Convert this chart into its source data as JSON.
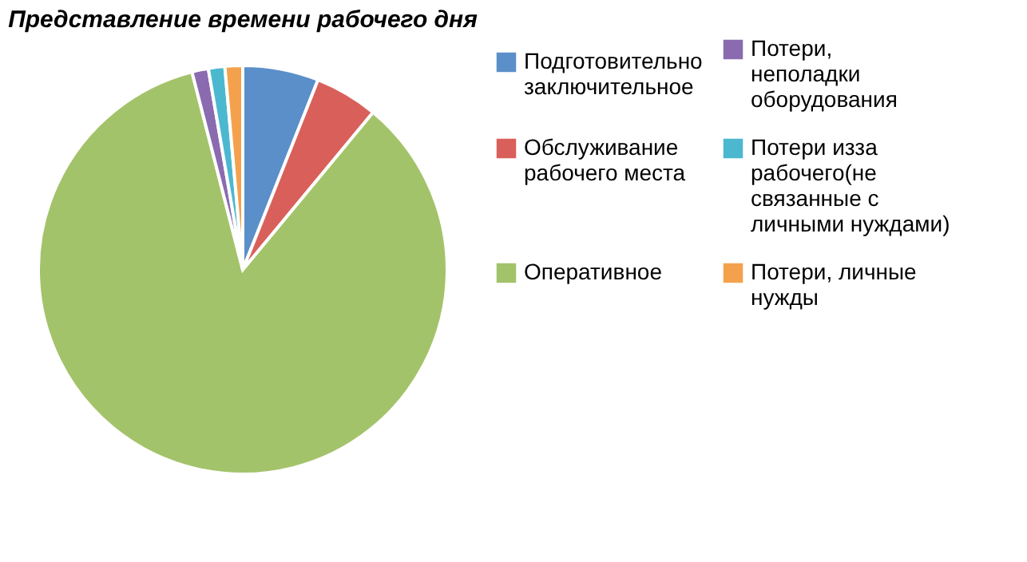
{
  "chart_data": {
    "type": "pie",
    "title": "Представление времени рабочего дня",
    "categories": [
      "Подготовительно заключительное",
      "Обслуживание рабочего места",
      "Оперативное",
      "Потери, неполадки оборудования",
      "Потери изза рабочего(не связанные с личными нуждами)",
      "Потери, личные нужды"
    ],
    "values": [
      6,
      5,
      85,
      1.3,
      1.3,
      1.4
    ],
    "colors": [
      "#5b8fc9",
      "#d9605a",
      "#a3c36a",
      "#8b6bb0",
      "#4bb8cf",
      "#f4a14e"
    ],
    "legend": "right"
  }
}
